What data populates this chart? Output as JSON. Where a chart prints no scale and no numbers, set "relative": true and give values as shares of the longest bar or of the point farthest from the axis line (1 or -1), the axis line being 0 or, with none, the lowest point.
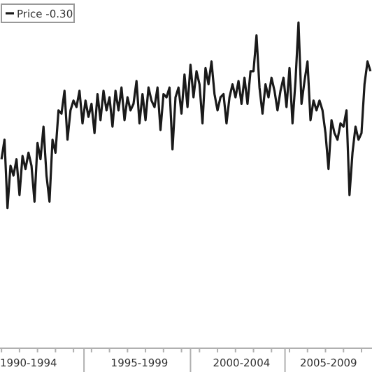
{
  "chart_data": {
    "type": "line",
    "relative": true,
    "legend": "top left",
    "categories": [
      null,
      null,
      null,
      null,
      null,
      null,
      null,
      null,
      null,
      "1990-1994",
      null,
      null,
      null,
      null,
      null,
      null,
      null,
      null,
      null,
      null,
      null,
      null,
      null,
      null,
      null,
      null,
      null,
      null,
      null,
      null,
      null,
      null,
      null,
      null,
      null,
      null,
      null,
      null,
      null,
      null,
      null,
      null,
      null,
      null,
      null,
      null,
      "1995-1999",
      null,
      null,
      null,
      null,
      null,
      null,
      null,
      null,
      null,
      null,
      null,
      null,
      null,
      null,
      null,
      null,
      null,
      null,
      null,
      null,
      null,
      null,
      null,
      null,
      null,
      null,
      null,
      null,
      null,
      null,
      null,
      null,
      null,
      "2000-2004",
      null,
      null,
      null,
      null,
      null,
      null,
      null,
      null,
      null,
      null,
      null,
      null,
      null,
      null,
      null,
      null,
      null,
      null,
      null,
      null,
      null,
      null,
      null,
      null,
      null,
      null,
      null,
      null,
      "2005-2009",
      null,
      null,
      null,
      null,
      null,
      null,
      null,
      null,
      null,
      null,
      null,
      null,
      null,
      null
    ],
    "series": [
      {
        "name": "Price -0.30",
        "color": "#1a1a1a",
        "values": [
          0.58,
          0.64,
          0.43,
          0.56,
          0.53,
          0.58,
          0.47,
          0.59,
          0.55,
          0.6,
          0.56,
          0.45,
          0.63,
          0.58,
          0.68,
          0.53,
          0.45,
          0.64,
          0.6,
          0.73,
          0.72,
          0.79,
          0.64,
          0.73,
          0.76,
          0.74,
          0.79,
          0.69,
          0.76,
          0.71,
          0.75,
          0.66,
          0.78,
          0.7,
          0.79,
          0.73,
          0.77,
          0.68,
          0.79,
          0.73,
          0.8,
          0.7,
          0.77,
          0.73,
          0.75,
          0.82,
          0.69,
          0.78,
          0.7,
          0.8,
          0.76,
          0.74,
          0.8,
          0.67,
          0.78,
          0.77,
          0.8,
          0.61,
          0.77,
          0.8,
          0.72,
          0.84,
          0.74,
          0.87,
          0.77,
          0.85,
          0.81,
          0.69,
          0.86,
          0.81,
          0.88,
          0.78,
          0.73,
          0.77,
          0.78,
          0.69,
          0.77,
          0.81,
          0.77,
          0.82,
          0.75,
          0.83,
          0.75,
          0.85,
          0.85,
          0.96,
          0.8,
          0.72,
          0.81,
          0.77,
          0.83,
          0.79,
          0.73,
          0.79,
          0.83,
          0.74,
          0.86,
          0.69,
          0.82,
          1,
          0.75,
          0.82,
          0.88,
          0.7,
          0.76,
          0.73,
          0.76,
          0.73,
          0.66,
          0.55,
          0.7,
          0.66,
          0.64,
          0.69,
          0.68,
          0.73,
          0.47,
          0.6,
          0.68,
          0.64,
          0.66,
          0.81,
          0.88,
          0.85
        ]
      }
    ]
  }
}
